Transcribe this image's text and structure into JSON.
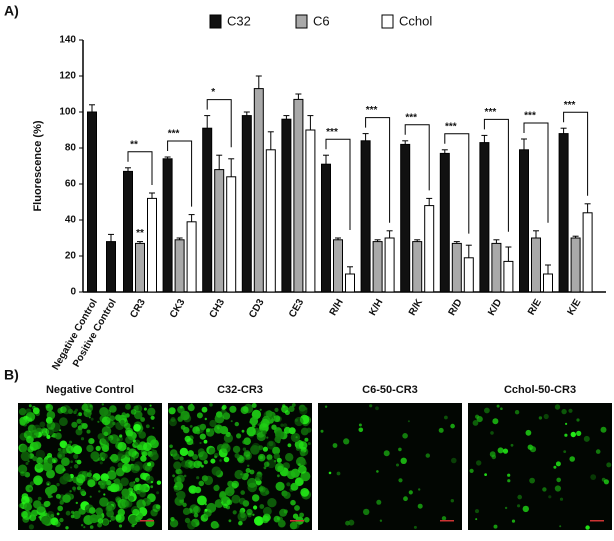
{
  "chart_data": {
    "type": "bar",
    "panel_label": "A)",
    "y_label": "Fluorescence (%)",
    "categories": [
      "Negative Control",
      "Positive Control",
      "CR3",
      "CK3",
      "CH3",
      "CD3",
      "CE3",
      "R/H",
      "K/H",
      "R/K",
      "R/D",
      "K/D",
      "R/E",
      "K/E"
    ],
    "series": [
      {
        "name": "C32",
        "color": "#111111",
        "values": [
          100,
          28,
          67,
          74,
          91,
          98,
          96,
          71,
          84,
          82,
          77,
          83,
          79,
          88
        ],
        "errors": [
          4,
          4,
          2,
          1,
          7,
          2,
          2,
          5,
          4,
          2,
          2,
          4,
          6,
          3
        ]
      },
      {
        "name": "C6",
        "color": "#a9a9a9",
        "values": [
          null,
          null,
          27,
          29,
          68,
          113,
          107,
          29,
          28,
          28,
          27,
          27,
          30,
          30
        ],
        "errors": [
          null,
          null,
          1,
          1,
          8,
          7,
          3,
          1,
          1,
          1,
          1,
          2,
          4,
          1
        ]
      },
      {
        "name": "Cchol",
        "color": "#ffffff",
        "values": [
          null,
          null,
          52,
          39,
          64,
          79,
          90,
          10,
          30,
          48,
          19,
          17,
          10,
          44
        ],
        "errors": [
          null,
          null,
          3,
          4,
          10,
          10,
          8,
          4,
          4,
          4,
          7,
          8,
          5,
          5
        ]
      }
    ],
    "significance": [
      null,
      null,
      "**",
      "***",
      "*",
      null,
      null,
      "***",
      "***",
      "***",
      "***",
      "***",
      "***",
      "***"
    ],
    "significance_c6": [
      null,
      null,
      "**",
      null,
      null,
      null,
      null,
      null,
      null,
      null,
      null,
      null,
      null,
      null
    ],
    "ylim": [
      0,
      140
    ],
    "yticks": [
      0,
      20,
      40,
      60,
      80,
      100,
      120,
      140
    ]
  },
  "images": {
    "panel_label": "B)",
    "titles": [
      "Negative Control",
      "C32-CR3",
      "C6-50-CR3",
      "Cchol-50-CR3"
    ]
  }
}
